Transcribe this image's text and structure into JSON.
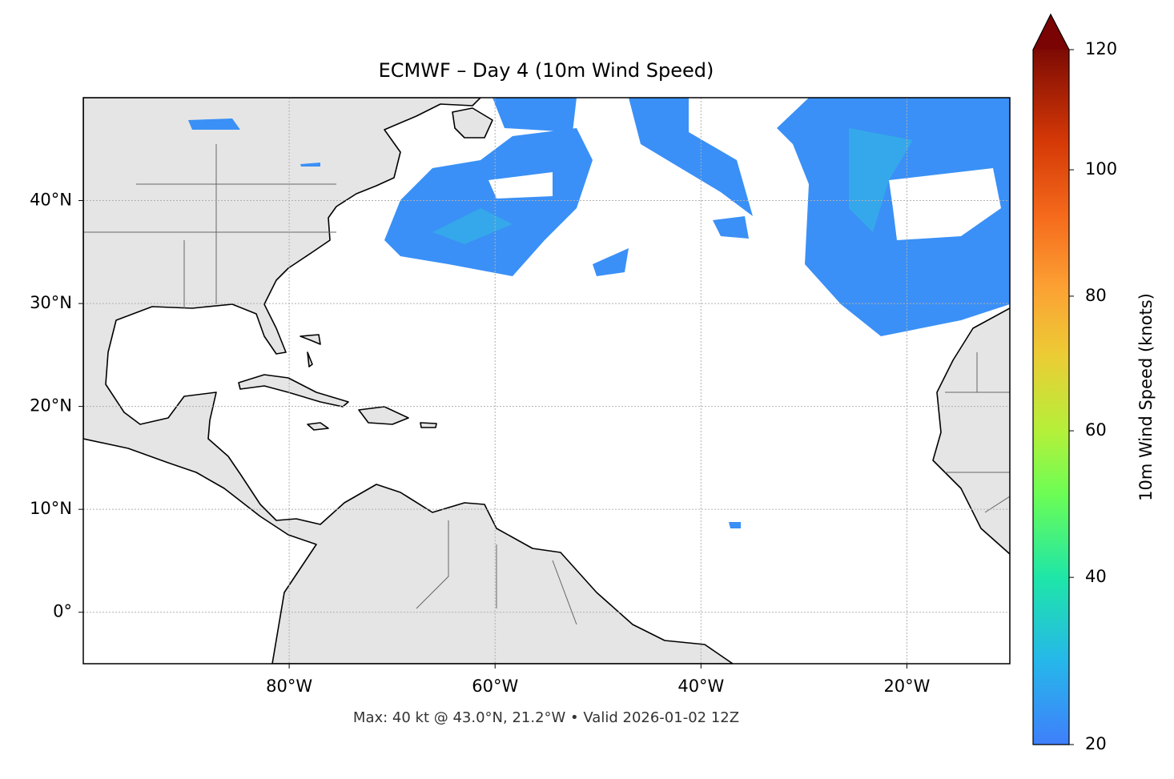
{
  "chart_data": {
    "type": "map",
    "title": "ECMWF – Day 4 (10m Wind Speed)",
    "footer": "Max: 40 kt @ 43.0°N, 21.2°W • Valid 2026-01-02 12Z",
    "xlim": [
      -100,
      -10
    ],
    "ylim": [
      -5,
      50
    ],
    "xticks": [
      {
        "value": -80,
        "label": "80°W"
      },
      {
        "value": -60,
        "label": "60°W"
      },
      {
        "value": -40,
        "label": "40°W"
      },
      {
        "value": -20,
        "label": "20°W"
      }
    ],
    "yticks": [
      {
        "value": 0,
        "label": "0°"
      },
      {
        "value": 10,
        "label": "10°N"
      },
      {
        "value": 20,
        "label": "20°N"
      },
      {
        "value": 30,
        "label": "30°N"
      },
      {
        "value": 40,
        "label": "40°N"
      }
    ],
    "grid": true,
    "colorbar": {
      "label": "10m Wind Speed (knots)",
      "lim": [
        20,
        120
      ],
      "ticks": [
        20,
        40,
        60,
        80,
        100,
        120
      ]
    }
  }
}
